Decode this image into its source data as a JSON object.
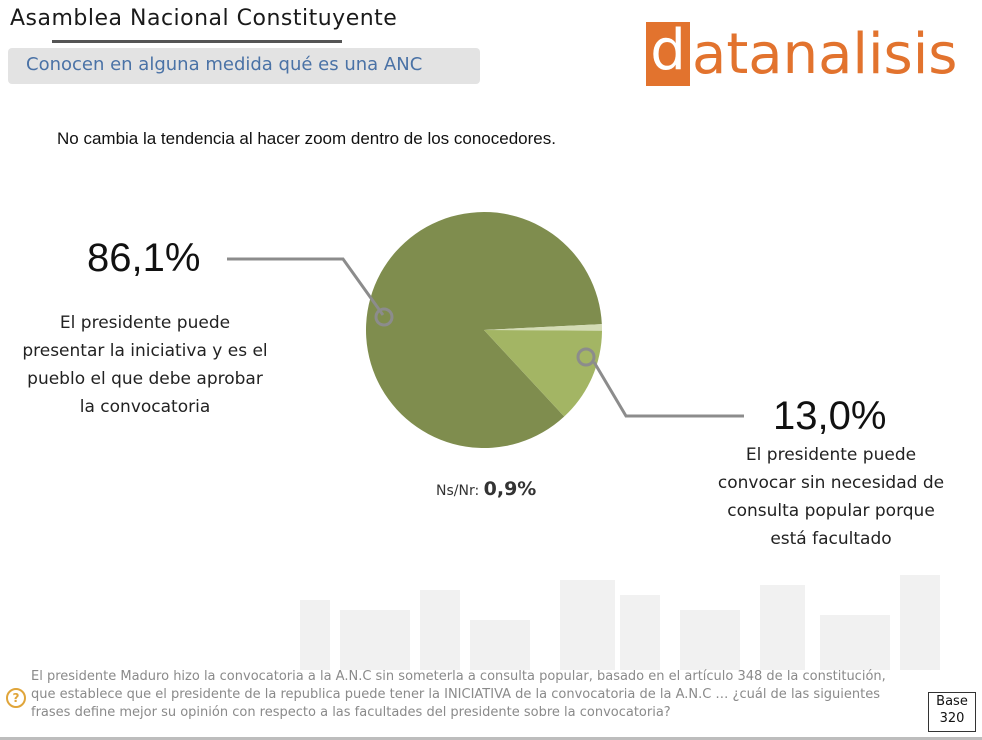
{
  "header": {
    "title": "Asamblea Nacional Constituyente",
    "subtitle": "Conocen en alguna medida qué es una ANC",
    "logo_text": "datanalisis",
    "logo_first_letter": "d",
    "logo_rest": "atanalisis"
  },
  "lead_text": "No cambia la tendencia al hacer zoom dentro de los conocedores.",
  "chart_data": {
    "type": "pie",
    "slices": [
      {
        "label": "El presidente puede presentar la iniciativa y es el pueblo el que debe aprobar la convocatoria",
        "value": 86.1,
        "display": "86,1%",
        "color": "#7f8d4e"
      },
      {
        "label": "El presidente puede convocar sin necesidad de consulta popular porque está facultado",
        "value": 13.0,
        "display": "13,0%",
        "color": "#a3b564"
      },
      {
        "label": "Ns/Nr:",
        "value": 0.9,
        "display": "0,9%",
        "color": "#d3dbb4"
      }
    ]
  },
  "labels": {
    "left_pct": "86,1%",
    "left_lines": [
      "El presidente puede",
      "presentar la iniciativa y es el",
      "pueblo el que debe aprobar",
      "la convocatoria"
    ],
    "right_pct": "13,0%",
    "right_lines": [
      "El presidente puede",
      "convocar sin necesidad de",
      "consulta popular porque",
      "está facultado"
    ],
    "nsnr_label": "Ns/Nr:",
    "nsnr_value": "0,9%"
  },
  "footer": {
    "question": "El presidente Maduro hizo la convocatoria a la A.N.C sin someterla a consulta popular, basado en el artículo 348 de la constitución, que establece que el presidente de la republica puede tener la INICIATIVA de la convocatoria de la A.N.C … ¿cuál de las siguientes frases define mejor su opinión con respecto a las facultades del presidente sobre la convocatoria?",
    "icon": "question-mark-icon",
    "icon_glyph": "?",
    "base_label": "Base",
    "base_value": "320"
  },
  "colors": {
    "accent_orange": "#e2732e",
    "subtitle_blue": "#4a72a6",
    "connector_gray": "#8c8c8c"
  }
}
